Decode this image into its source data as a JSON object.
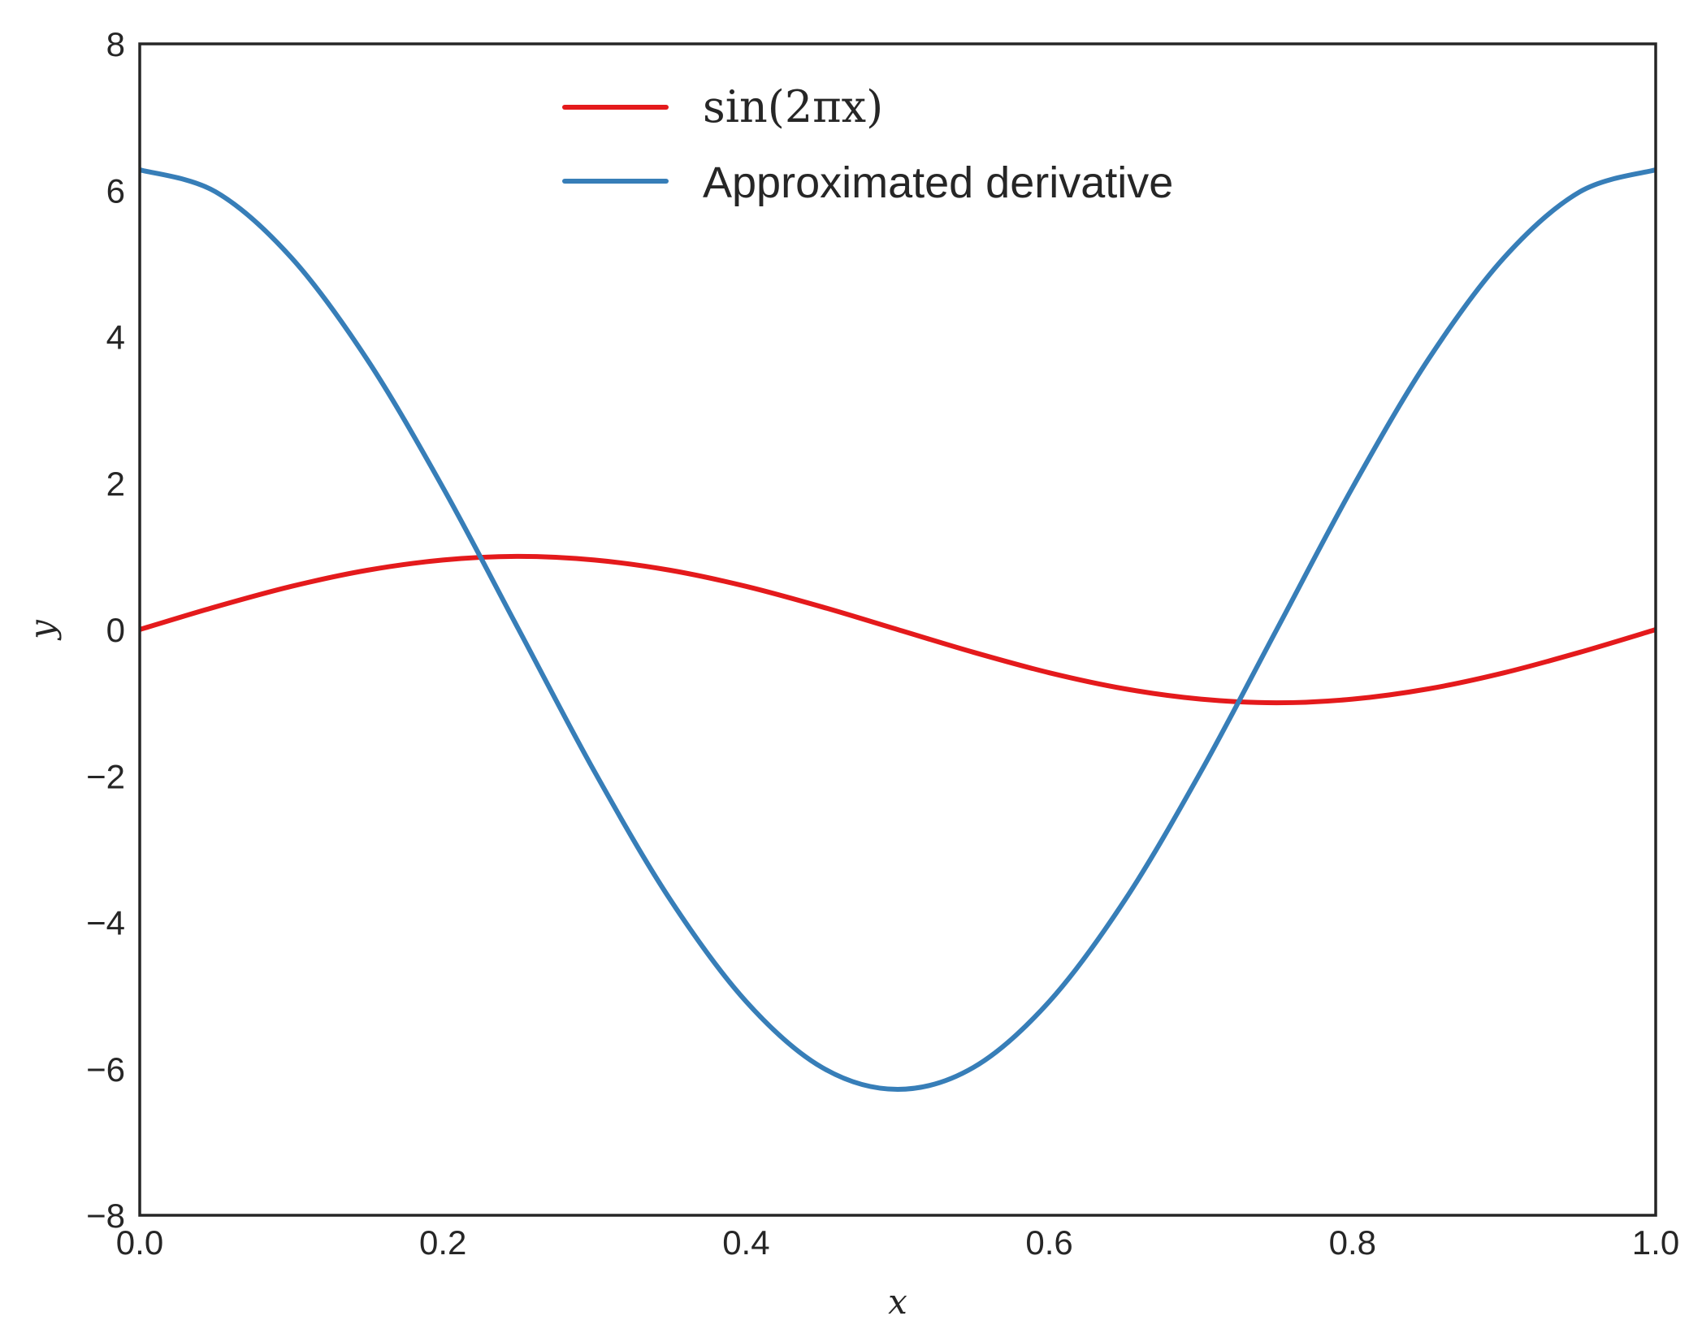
{
  "chart_data": {
    "type": "line",
    "title": "",
    "xlabel": "x",
    "ylabel": "y",
    "xlim": [
      0.0,
      1.0
    ],
    "ylim": [
      -8,
      8
    ],
    "grid": false,
    "legend_position": "top-center",
    "x_ticks": [
      "0.0",
      "0.2",
      "0.4",
      "0.6",
      "0.8",
      "1.0"
    ],
    "x_tick_values": [
      0.0,
      0.2,
      0.4,
      0.6,
      0.8,
      1.0
    ],
    "y_ticks": [
      "8",
      "6",
      "4",
      "2",
      "0",
      "−2",
      "−4",
      "−6",
      "−8"
    ],
    "y_tick_values": [
      8,
      6,
      4,
      2,
      0,
      -2,
      -4,
      -6,
      -8
    ],
    "series": [
      {
        "name": "sin(2πx)",
        "color": "#e41a1c",
        "x": [
          0.0,
          0.05,
          0.1,
          0.15,
          0.2,
          0.25,
          0.3,
          0.35,
          0.4,
          0.45,
          0.5,
          0.55,
          0.6,
          0.65,
          0.7,
          0.75,
          0.8,
          0.85,
          0.9,
          0.95,
          1.0
        ],
        "y": [
          0.0,
          0.31,
          0.59,
          0.81,
          0.95,
          1.0,
          0.95,
          0.81,
          0.59,
          0.31,
          0.0,
          -0.31,
          -0.59,
          -0.81,
          -0.95,
          -1.0,
          -0.95,
          -0.81,
          -0.59,
          -0.31,
          0.0
        ]
      },
      {
        "name": "Approximated derivative",
        "color": "#377eb8",
        "x": [
          0.0,
          0.05,
          0.1,
          0.15,
          0.2,
          0.25,
          0.3,
          0.35,
          0.4,
          0.45,
          0.5,
          0.55,
          0.6,
          0.65,
          0.7,
          0.75,
          0.8,
          0.85,
          0.9,
          0.95,
          1.0
        ],
        "y": [
          6.28,
          5.98,
          5.08,
          3.69,
          1.94,
          0.0,
          -1.94,
          -3.69,
          -5.08,
          -5.98,
          -6.28,
          -5.98,
          -5.08,
          -3.69,
          -1.94,
          0.0,
          1.94,
          3.69,
          5.08,
          5.98,
          6.28
        ]
      }
    ]
  }
}
